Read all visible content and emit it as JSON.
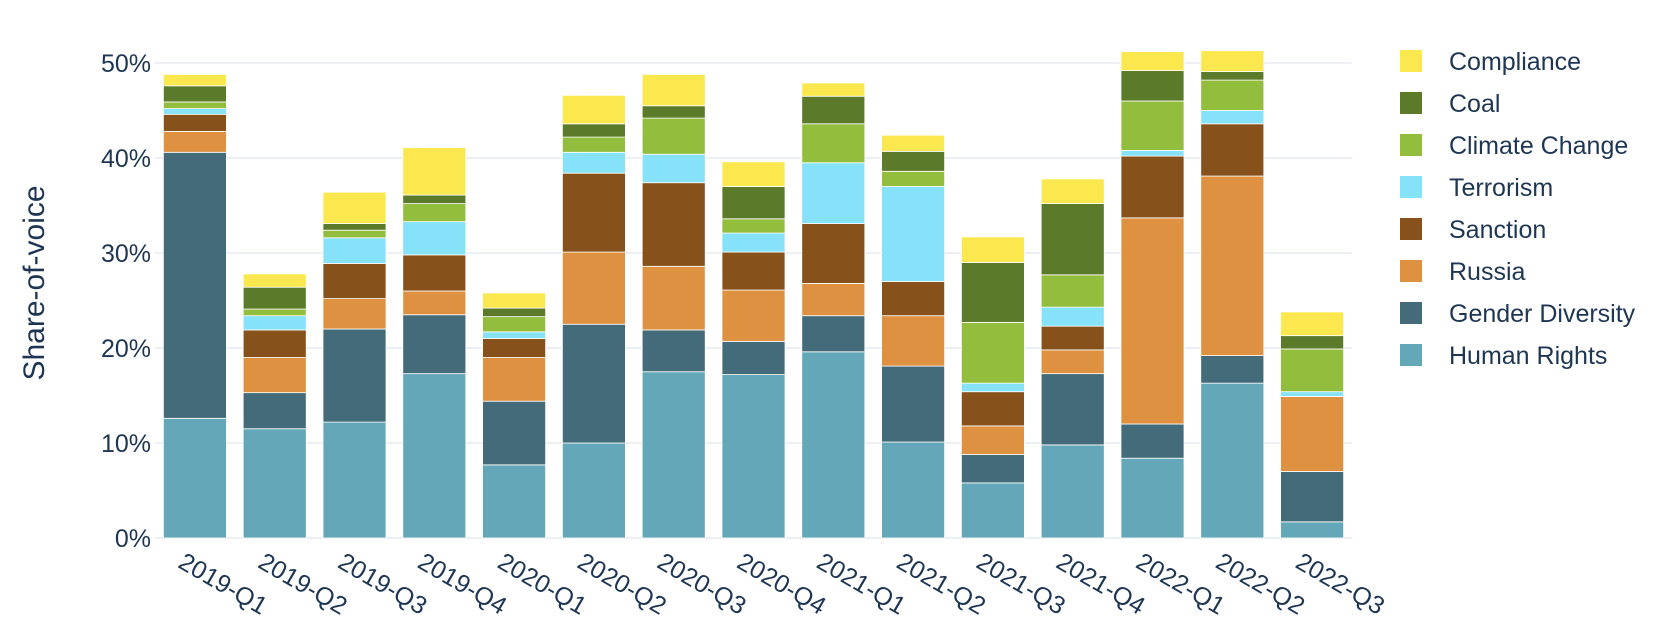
{
  "chart_data": {
    "type": "bar",
    "stacked": true,
    "ylabel": "Share-of-voice",
    "ylim": [
      0,
      50
    ],
    "yticks": [
      "0%",
      "10%",
      "20%",
      "30%",
      "40%",
      "50%"
    ],
    "grid": true,
    "legend_position": "right",
    "categories": [
      "2019-Q1",
      "2019-Q2",
      "2019-Q3",
      "2019-Q4",
      "2020-Q1",
      "2020-Q2",
      "2020-Q3",
      "2020-Q4",
      "2021-Q1",
      "2021-Q2",
      "2021-Q3",
      "2021-Q4",
      "2022-Q1",
      "2022-Q2",
      "2022-Q3"
    ],
    "series": [
      {
        "name": "Human Rights",
        "color": "#63a7b8",
        "values": [
          12.6,
          11.5,
          12.2,
          17.3,
          7.7,
          10.0,
          17.5,
          17.2,
          19.6,
          10.1,
          5.8,
          9.8,
          8.4,
          16.3,
          1.7
        ]
      },
      {
        "name": "Gender Diversity",
        "color": "#446b79",
        "values": [
          28.0,
          3.8,
          9.8,
          6.2,
          6.7,
          12.5,
          4.4,
          3.5,
          3.8,
          8.0,
          3.0,
          7.5,
          3.6,
          2.9,
          5.3
        ]
      },
      {
        "name": "Russia",
        "color": "#de9141",
        "values": [
          2.2,
          3.7,
          3.2,
          2.5,
          4.6,
          7.6,
          6.7,
          5.4,
          3.4,
          5.3,
          3.0,
          2.5,
          21.7,
          18.9,
          7.9
        ]
      },
      {
        "name": "Sanction",
        "color": "#86511b",
        "values": [
          1.8,
          2.9,
          3.7,
          3.8,
          2.0,
          8.3,
          8.8,
          4.0,
          6.3,
          3.6,
          3.6,
          2.5,
          6.5,
          5.5,
          0.0
        ]
      },
      {
        "name": "Terrorism",
        "color": "#85e2f8",
        "values": [
          0.6,
          1.5,
          2.7,
          3.5,
          0.7,
          2.2,
          3.0,
          2.0,
          6.4,
          10.0,
          0.9,
          2.0,
          0.6,
          1.4,
          0.5
        ]
      },
      {
        "name": "Climate Change",
        "color": "#92bd3d",
        "values": [
          0.7,
          0.7,
          0.8,
          1.9,
          1.6,
          1.6,
          3.8,
          1.5,
          4.1,
          1.6,
          6.4,
          3.4,
          5.2,
          3.2,
          4.5
        ]
      },
      {
        "name": "Coal",
        "color": "#5c7b2a",
        "values": [
          1.7,
          2.3,
          0.7,
          0.9,
          0.9,
          1.4,
          1.3,
          3.4,
          2.9,
          2.1,
          6.3,
          7.5,
          3.2,
          0.9,
          1.4
        ]
      },
      {
        "name": "Compliance",
        "color": "#fbe84f",
        "values": [
          1.2,
          1.4,
          3.3,
          5.0,
          1.6,
          3.0,
          3.3,
          2.6,
          1.4,
          1.7,
          2.7,
          2.6,
          2.0,
          2.2,
          2.5
        ]
      }
    ]
  }
}
